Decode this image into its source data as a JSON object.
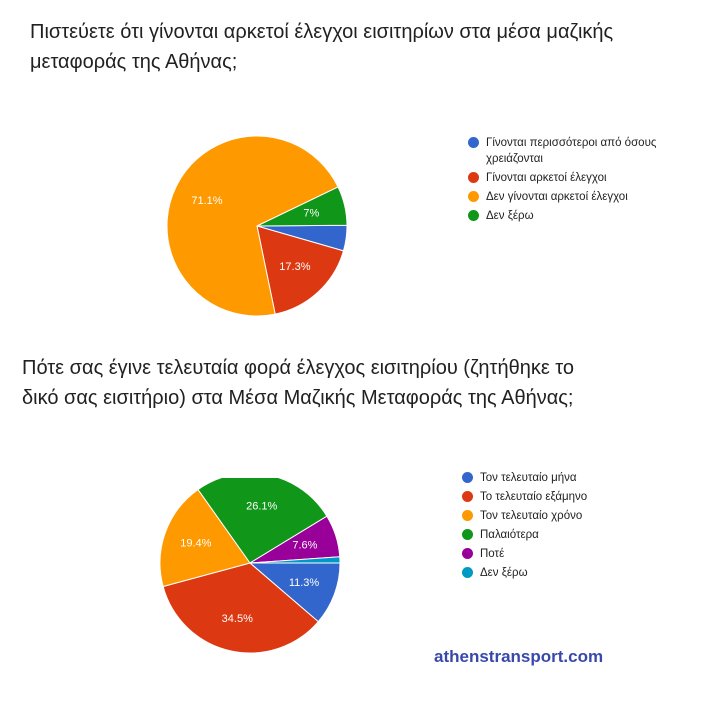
{
  "chart_data": [
    {
      "type": "pie",
      "title": "Πιστεύετε ότι γίνονται αρκετοί έλεγχοι εισιτηρίων στα μέσα μαζικής\nμεταφοράς της Αθήνας;",
      "legend_position": "right",
      "slices": [
        {
          "name": "Γίνονται περισσότεροι από όσους χρειάζονται",
          "value": 4.6,
          "color": "#3366cc",
          "label": ""
        },
        {
          "name": "Γίνονται αρκετοί έλεγχοι",
          "value": 17.3,
          "color": "#dc3912",
          "label": "17.3%"
        },
        {
          "name": "Δεν γίνονται αρκετοί έλεγχοι",
          "value": 71.1,
          "color": "#ff9900",
          "label": "71.1%"
        },
        {
          "name": "Δεν ξέρω",
          "value": 7.0,
          "color": "#109618",
          "label": "7%"
        }
      ]
    },
    {
      "type": "pie",
      "title": "Πότε σας έγινε τελευταία φορά έλεγχος εισιτηρίου (ζητήθηκε το\nδικό σας εισιτήριο) στα Μέσα Μαζικής Μεταφοράς της Αθήνας;",
      "legend_position": "right",
      "slices": [
        {
          "name": "Τον τελευταίο μήνα",
          "value": 11.3,
          "color": "#3366cc",
          "label": "11.3%"
        },
        {
          "name": "Το τελευταίο εξάμηνο",
          "value": 34.5,
          "color": "#dc3912",
          "label": "34.5%"
        },
        {
          "name": "Τον τελευταίο χρόνο",
          "value": 19.4,
          "color": "#ff9900",
          "label": "19.4%"
        },
        {
          "name": "Παλαιότερα",
          "value": 26.1,
          "color": "#109618",
          "label": "26.1%"
        },
        {
          "name": "Ποτέ",
          "value": 7.6,
          "color": "#990099",
          "label": "7.6%"
        },
        {
          "name": "Δεν ξέρω",
          "value": 1.1,
          "color": "#0099c6",
          "label": ""
        }
      ]
    }
  ],
  "watermark": "athenstransport.com"
}
